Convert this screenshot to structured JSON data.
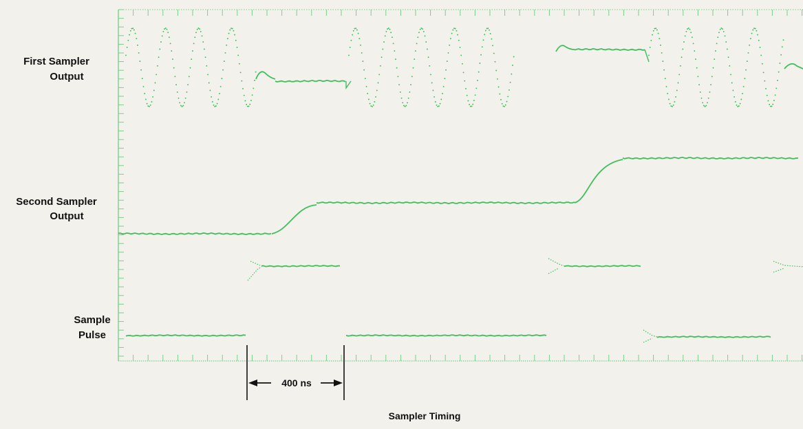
{
  "trace_labels": {
    "first_sampler_line1": "First Sampler",
    "first_sampler_line2": "Output",
    "second_sampler_line1": "Second Sampler",
    "second_sampler_line2": "Output",
    "sample_pulse_line1": "Sample",
    "sample_pulse_line2": "Pulse"
  },
  "interval_label": "400 ns",
  "caption": "Sampler Timing",
  "colors": {
    "trace": "#3fbf5a",
    "graticule": "#79d08a",
    "background": "#f2f1ec",
    "text": "#111111"
  }
}
